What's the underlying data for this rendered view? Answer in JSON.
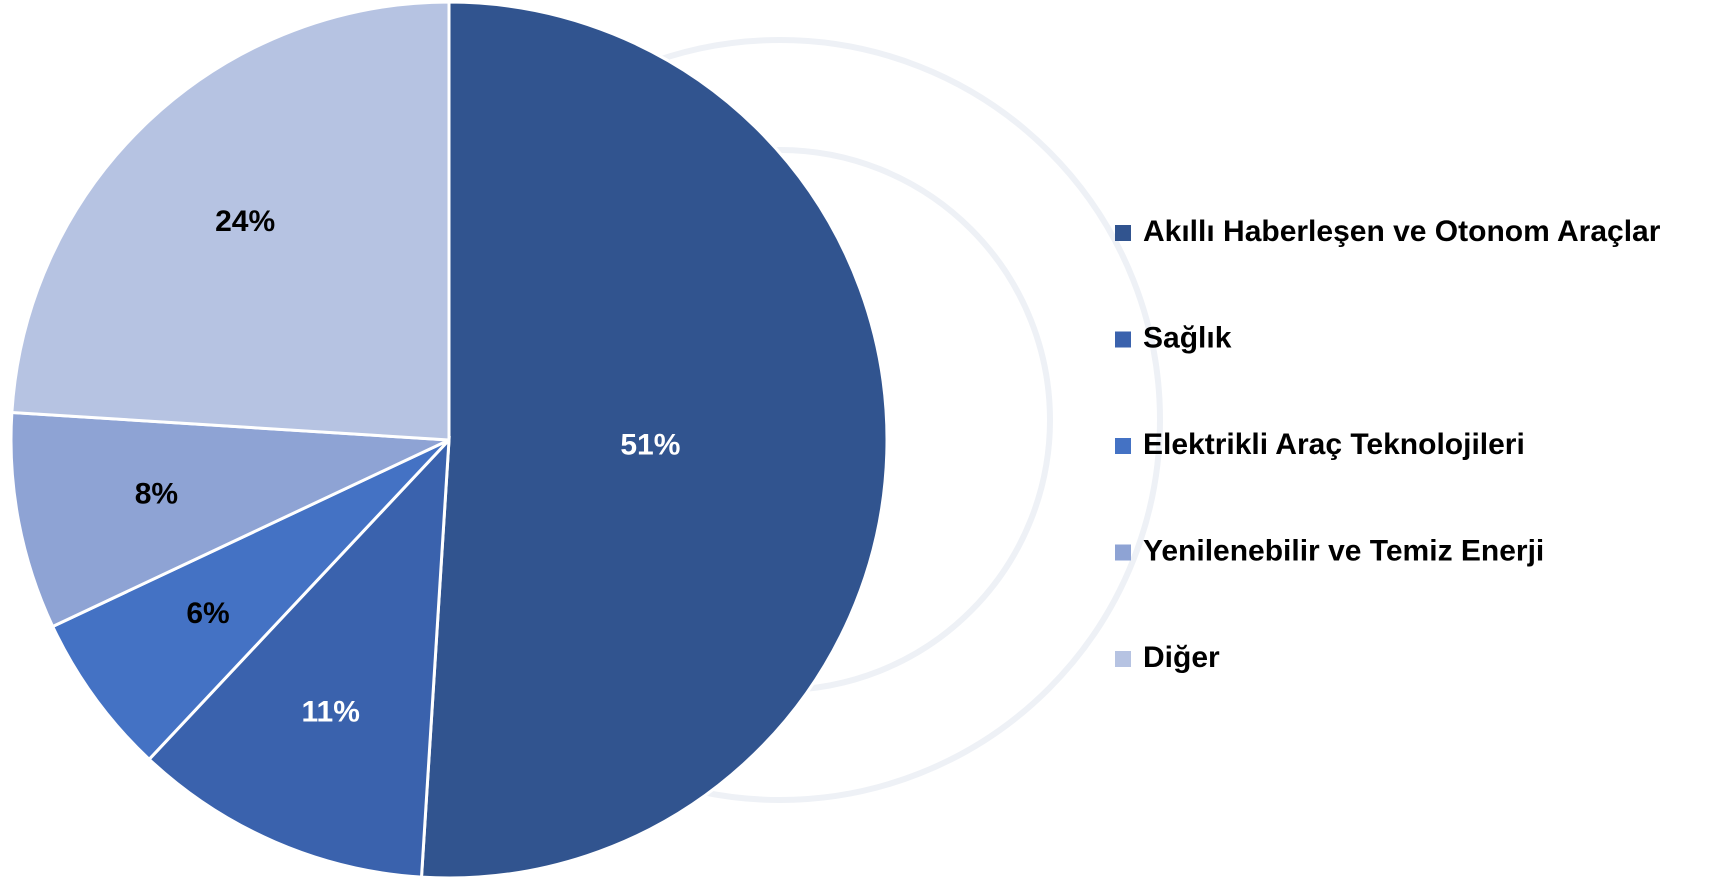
{
  "chart_data": {
    "type": "pie",
    "categories": [
      "Akıllı Haberleşen ve Otonom Araçlar",
      "Sağlık",
      "Elektrikli Araç Teknolojileri",
      "Yenilenebilir ve Temiz Enerji",
      "Diğer"
    ],
    "values": [
      51,
      11,
      6,
      8,
      24
    ],
    "value_labels": [
      "51%",
      "11%",
      "6%",
      "8%",
      "24%"
    ],
    "colors": [
      "#31548f",
      "#3a62ad",
      "#4472c4",
      "#8ea3d4",
      "#b6c3e2"
    ],
    "label_colors": [
      "#ffffff",
      "#ffffff",
      "#000000",
      "#000000",
      "#000000"
    ],
    "legend": "right"
  }
}
